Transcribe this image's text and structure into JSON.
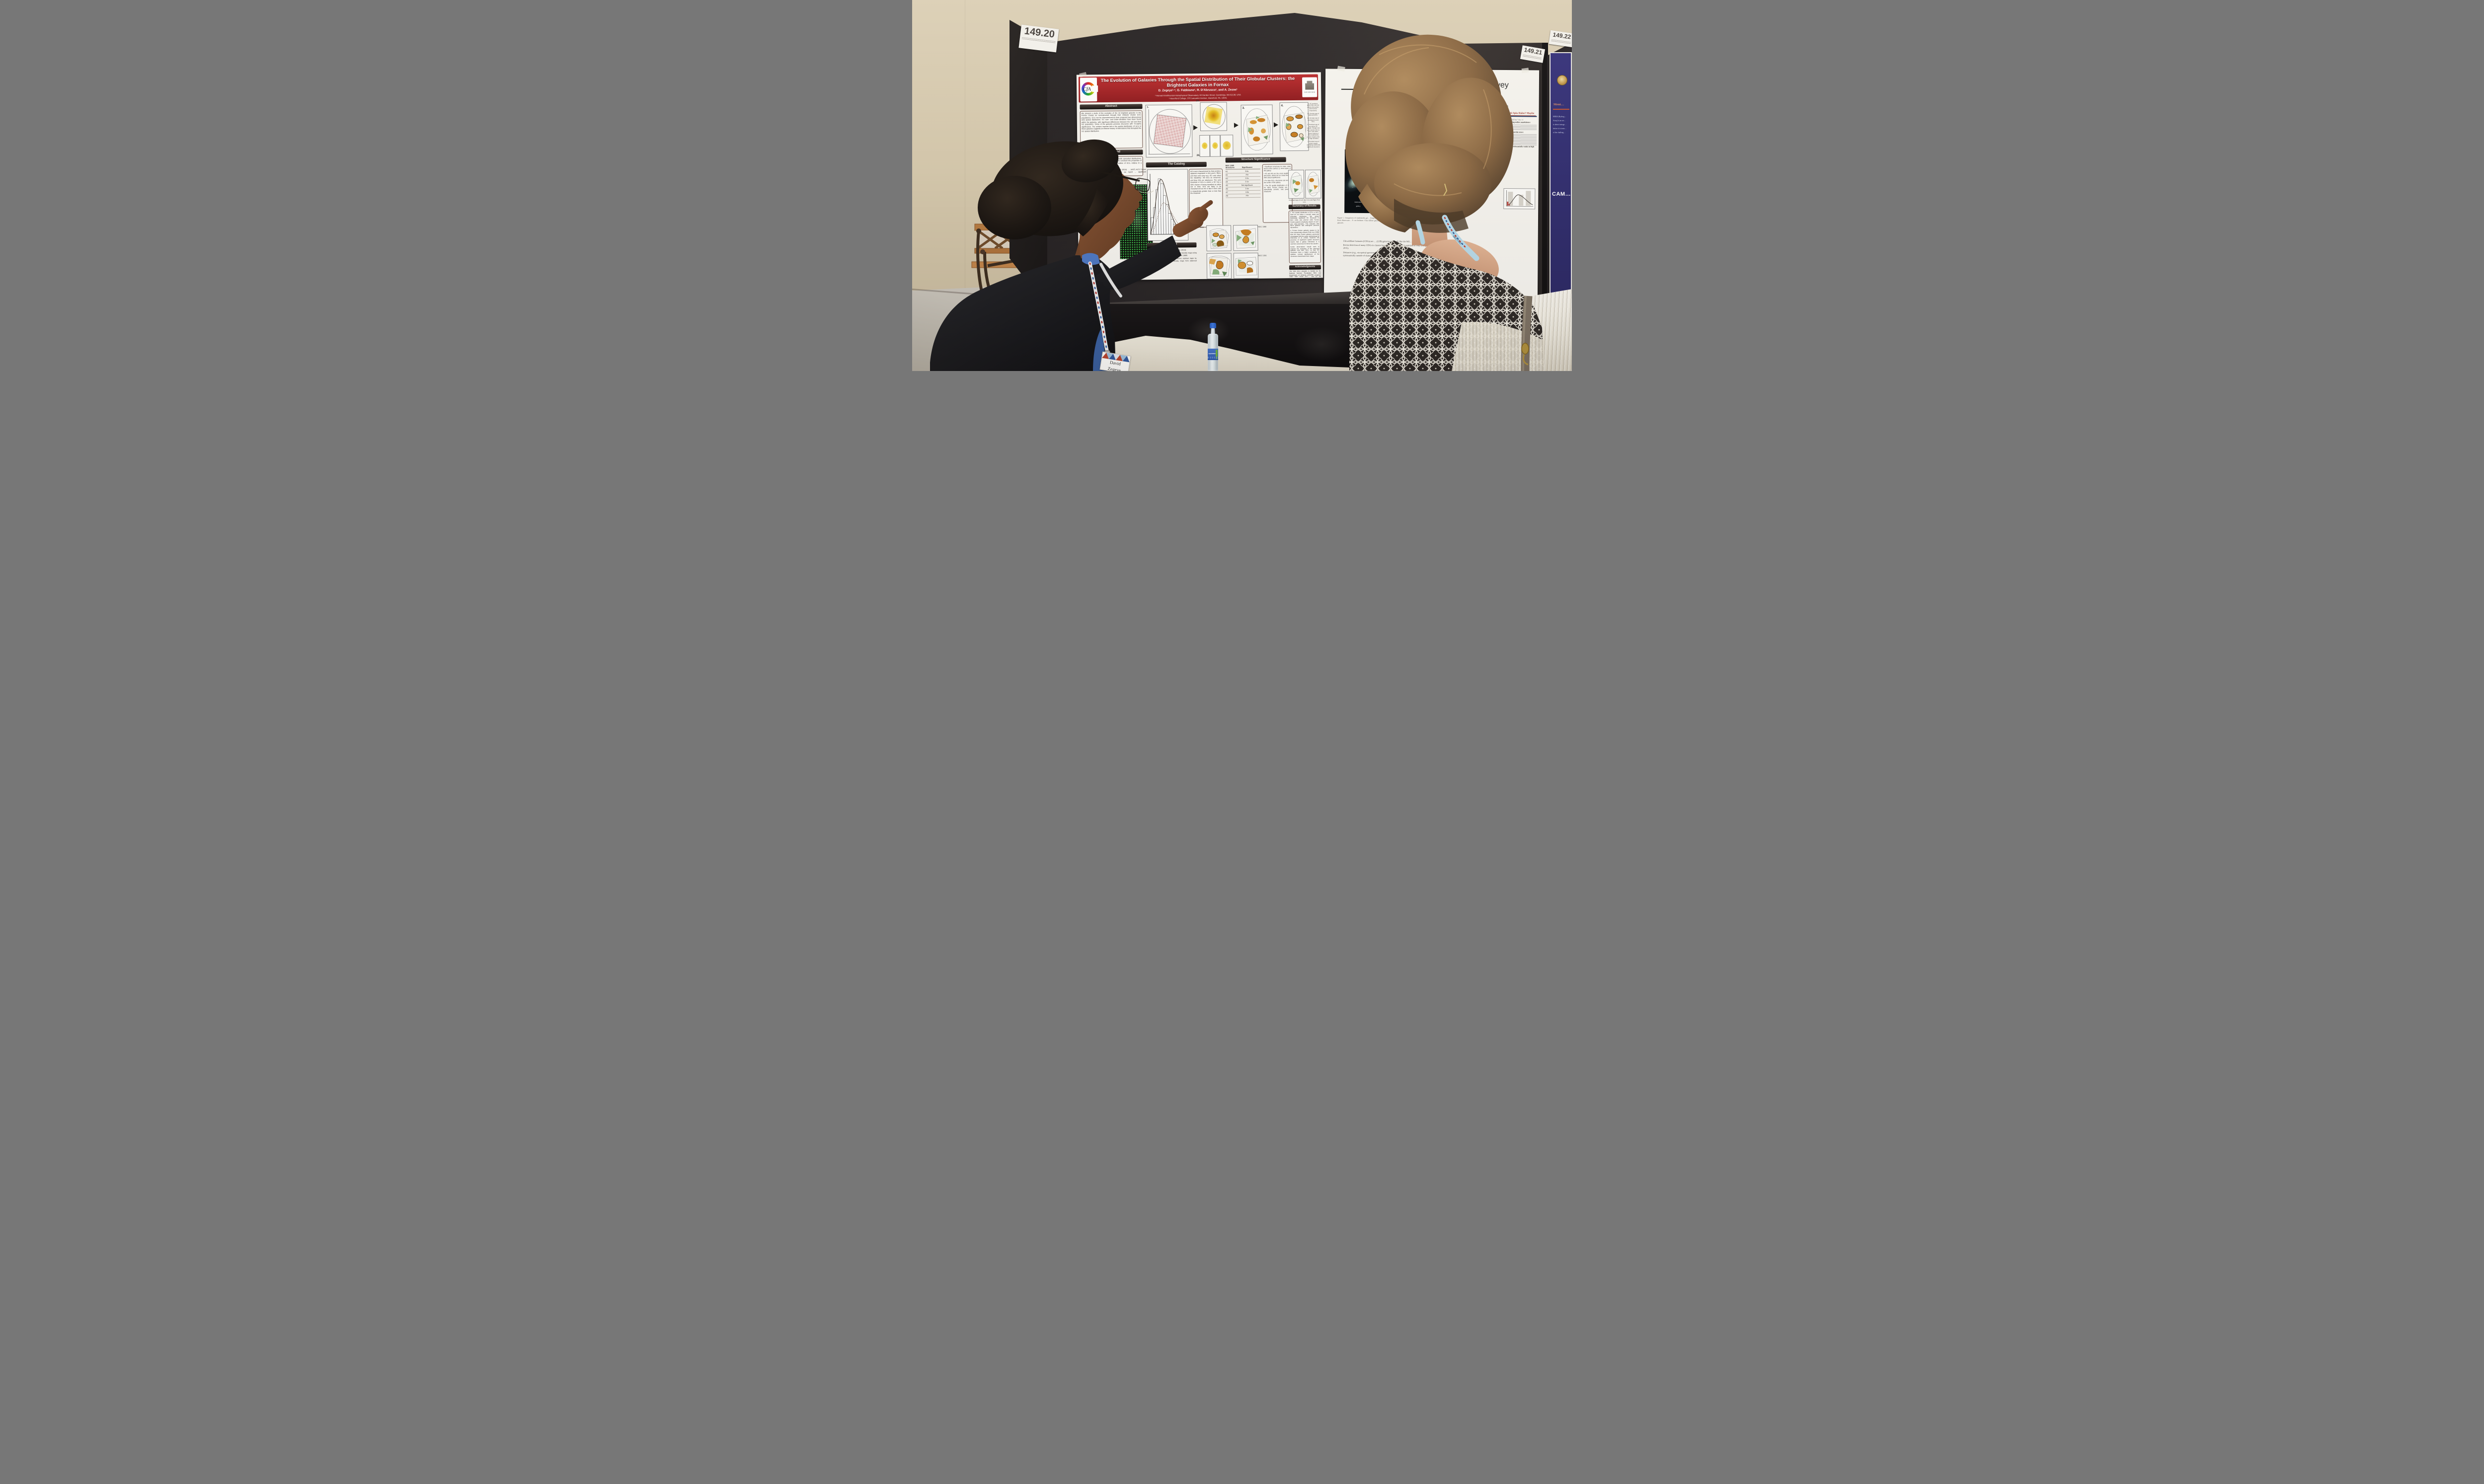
{
  "cards": {
    "c20": "149.20",
    "c21": "149.21",
    "c22": "149.22"
  },
  "fornax": {
    "title": "The Evolution of Galaxies Through the Spatial Distribution of Their Globular Clusters: the Brightest Galaxies in Fornax",
    "authors": "D. Zegeye¹·², G. Fabbiano¹, R. D'Abrusco¹, and A. Zezas¹",
    "affil1": "¹ Harvard-Smithsonian Astrophysical Observatory, 60 Garden Street, Cambridge, MA 02138, USA",
    "affil2": "² Haverford College, 370 Lancaster Avenue, Haverford, PA, 19041",
    "logo_cfa": "CfA",
    "logo_haverford": "HAVERFORD",
    "abstract_h": "Abstract",
    "abstract": "We present a study of the evolution of the 10 brightest galaxies in the Fornax Cluster as reconstructed through their Globular Cluster (GC) populations. GCs can be characterized by their projected two-dimensional (2D) spatial distribution. GC over- and under-densities have been found within the galaxies, with significant differences between the red and blue GC population. Some of the galaxies possess structures with >5-sigma significance. The evident imprints left in the spatial distribution of GCs in these galaxies suggests an intense history of interactions that disrupted the GC spatial distribution.",
    "background_h": "Background",
    "background": "GCs in a dynamically relaxed elliptical … smooth azimuthal distributions. Strong … anisotropies in the spatial … used to constrain the properties of … et al. 2013). Such disruptions will … densities of GCs, relative to a smooth",
    "sample_fragment": "… of Jordan et al (2015), … (HST) ACS Fornax Clu… this poster we report … significant structures fou…",
    "catalog_h": "The Catalog",
    "catalog": "GCs were characterized by their position, apparent magnitude in the g and z filters, and their color (mg−mz). GC color infers the metallicity: red GCs as metal-rich, and blue GCs as metal-poor. The color threshold of GCs is where a GC has a 50% chance of being classified as either red or blue. GCs are likely to be characterized as red or blue if their color is respectively greater than or less than the threshold",
    "method_h": "Method",
    "method_intro": "We followed the approach of D'Abrusco et al. (2013):",
    "method_steps": [
      "For each galaxy GC sample, we generated density maps using the K-Nearest Neighbor method (KNN; Dressler 1980)",
      "We used these density maps to derive residual maps by subtracting the mean simulated density maps from observed density maps",
      "We …"
    ],
    "structsig_h": "Structure Significance",
    "table_col1": "NGC 1399 Structures",
    "table_col2": "Significance",
    "table_rows": [
      [
        "A1",
        "3.8σ"
      ],
      [
        "A2",
        ">5σ"
      ],
      [
        "A3",
        "2.6σ"
      ],
      [
        "A4",
        "2.1σ"
      ],
      [
        "A5",
        "Not significant"
      ],
      [
        "A6",
        "2.4σ"
      ],
      [
        "A7",
        "4.0σ"
      ],
      [
        "A8",
        ">5σ"
      ]
    ],
    "struct_bullets": [
      "Significant structures for NGC 1399 found at the central, E, N-W region of the galaxy.",
      "A2 and A8 are the most significant structures, where 5σ is a lower limit of their actual significance.",
      "For blue GCs, structures curl around the center of the galaxy.",
      "The 2D spatial distribution of GCs for other Fornax Cluster are not azimuthally smooth, and possess structures"
    ],
    "flow_captions": [
      "1. GC positions, where blue and red points refer to blue and red GCs respectively.",
      "2a. Density map of observed GCs.",
      "2b. Density map of simulated smooth GCs.",
      "3. Residual map of the whole GC sample. Orange and green pixels refer to over- and under-dense regions of GCs respectively. Darker shades refer to large densities.",
      "4. Residual map of whole sample identifying statistically significant structures."
    ],
    "fig1_label": "1.",
    "fig2a_label": "2a.",
    "fig2b_label": "2b.",
    "fig3_label": "3.",
    "fig4_label": "4.",
    "ngc_left": "NGC 1310",
    "ngc_right_top": "NGC 1380",
    "ngc_right_bottom": "NGC 1351",
    "resid_caption": "Residual maps of Left: Blue GCs and Right: Red GCs",
    "summary_h": "Summary of Results",
    "summary_items": [
      "1. The spatial distribution of GCs in NGC 1399 do not follow a smooth radial and azimuthal distribution. We detect statistically significant GC structures in NGC 1399, and observe other Fornax Cluster galaxies displaying regions of over- and under-densities. This indicates that these galaxies had undergone previous interactions.",
      "2. Fornax Cluster galaxies appear to be more dynamically relaxed (Firth et al. 2008) than the Virgo Cluster galaxies previously investigated with the same methodology by D'Abrusco et al. (2016). However, the presence of significant spatial structures means that a galaxy interaction is a common occurrence for these two clusters.",
      "Future observations should seek to improve the resolution of the observed galaxies and their GCs, so that GC structures have a higher complexity. In addition, revised significances of the structures should factor their shape"
    ],
    "ack_h": "Acknowledgments",
    "ack": "The SAO REU program is funded by the National Science Foundation REU and Department of Defense ASSURE programs under NSF Grant AST…, and by the Smithsonian Institution."
  },
  "alfalfa": {
    "title_frag": "FA Survey",
    "team_frag": ") Darks” team",
    "affil_frag": "…ica de Andalucía, Spain",
    "extreme_frag": "Extreme Lo…",
    "spin_h": "Do HUDs have High Spin Halos? Maybe",
    "spin_intro": "HI-bearing UDGs may be “ultra diffuse” due to:",
    "spin_b1": "External Mechanisms suppressing stellar populations:",
    "spin_b2": "Internal Mechanisms spreading out the stars:",
    "spin_bold": "Figure 6 hints that HUDS may preferentially reside in high spin parameter halos",
    "box_l1": "Ds)",
    "box_l2": "y width",
    "box_l3": "responsible",
    "rotating_frag": "…lowly Rotating",
    "velocity_frag": "…w velocity",
    "udg_bullets": [
      "Ultra-diffuse Galaxies (UDGs) are … (LSB) galaxies with radii like the Mil… several kpc), but stellar masses of dwarf galaxies …",
      "Recent detection of many UDGs in clusters has renewed interest in this subclass of very LSB galaxies (e.g., van Dokkum et al. 2015).",
      "Distances (e.g., via optical spectroscopy) are very difficult to measure due to extreme LSB, thus they are difficult to detect systematically outside of cluster environments."
    ],
    "alfalfa_h": "ALFALFA: Locating UDGs with HI",
    "alfalfa_bullets": [
      "The Arecibo Legacy Fast ALFA (AL… Giovanelli et al. 2005; Haynes et… has detected over 30,000 ex…",
      "ALFALFA can detect lo… missed by optical su… tool for systemati…",
      "Leisman et … in ALFAL…"
    ],
    "fig1_caption": "Figure 1. Comparison of Andromeda gal… Dragonfly 17 to scale, from Keck Observator… P. van Dokkum. Ultra diffuse galaxies have … dwarf galaxies.",
    "andromeda1": "Andromeda",
    "andromeda2": "galaxy"
  },
  "hera": {
    "heading_frag": "Ment…",
    "lines": [
      "HERA (Hydrog…",
      "Array) is an arr…",
      "to detect interga…",
      "before it is ioniz…",
      "of the challeng…"
    ],
    "cam_frag": "CAM…"
  },
  "badge": {
    "first": "David",
    "last": "Zegeye"
  },
  "lanyard_frag": "MEETING",
  "bottle_brand": "AQUAFINA",
  "colors": {
    "banner_red": "#a82023",
    "board": "#272324",
    "wall": "#d7caae",
    "navy": "#1f3864",
    "heading_red": "#a23a2c",
    "lanyard_blue": "#b7dae9",
    "cap_blue": "#2f6fd8"
  }
}
